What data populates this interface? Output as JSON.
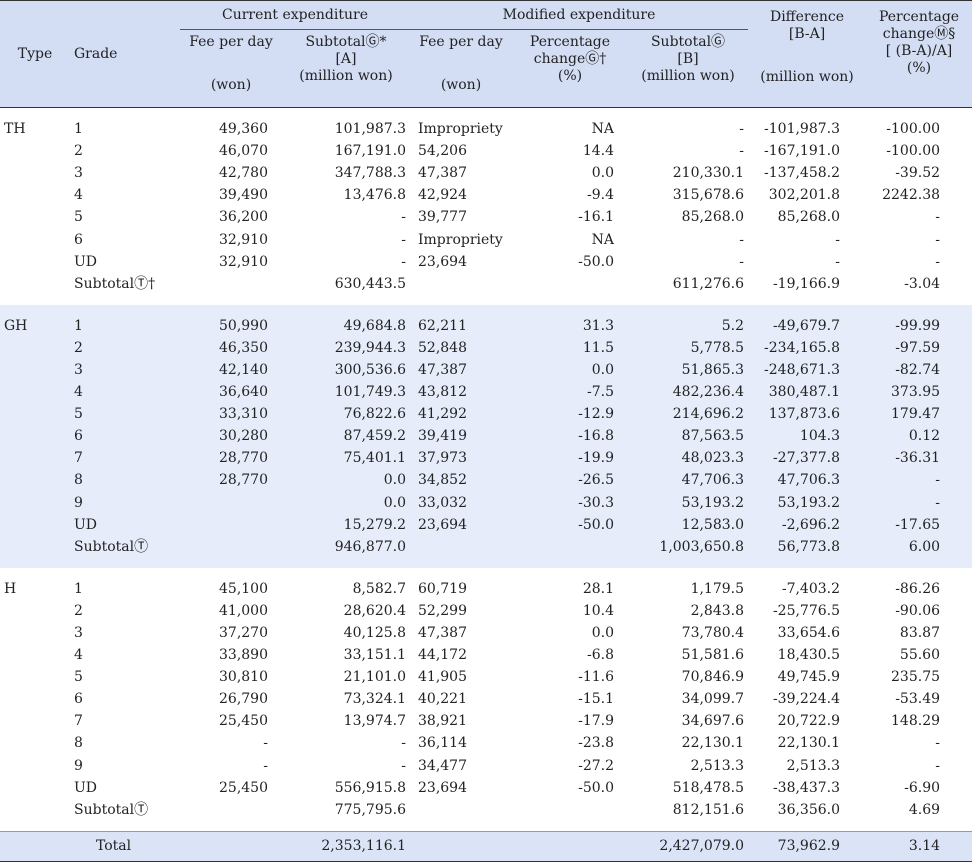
{
  "header": {
    "type": "Type",
    "grade": "Grade",
    "current_group": "Current expenditure",
    "modified_group": "Modified expenditure",
    "cur_fee": "Fee per day",
    "cur_fee_unit": "(won)",
    "cur_sub": "SubtotalⒼ*",
    "cur_sub_a": "[A]",
    "cur_sub_unit": "(million won)",
    "mod_fee": "Fee per day",
    "mod_fee_unit": "(won)",
    "mod_pct": "Percentage",
    "mod_pct2": "changeⒼ†",
    "mod_pct_unit": "(%)",
    "mod_sub": "SubtotalⒼ",
    "mod_sub_b": "[B]",
    "mod_sub_unit": "(million won)",
    "diff": "Difference",
    "diff_ba": "[B-A]",
    "diff_unit": "(million won)",
    "pct": "Percentage",
    "pct2": "changeⓂ§",
    "pct3": "[ (B-A)/A]",
    "pct_unit": "(%)"
  },
  "sections": [
    {
      "type": "TH",
      "rows": [
        [
          "1",
          "49,360",
          "101,987.3",
          "Impropriety",
          "NA",
          "-",
          "-101,987.3",
          "-100.00"
        ],
        [
          "2",
          "46,070",
          "167,191.0",
          "54,206",
          "14.4",
          "-",
          "-167,191.0",
          "-100.00"
        ],
        [
          "3",
          "42,780",
          "347,788.3",
          "47,387",
          "0.0",
          "210,330.1",
          "-137,458.2",
          "-39.52"
        ],
        [
          "4",
          "39,490",
          "13,476.8",
          "42,924",
          "-9.4",
          "315,678.6",
          "302,201.8",
          "2242.38"
        ],
        [
          "5",
          "36,200",
          "-",
          "39,777",
          "-16.1",
          "85,268.0",
          "85,268.0",
          "-"
        ],
        [
          "6",
          "32,910",
          "-",
          "Impropriety",
          "NA",
          "-",
          "-",
          "-"
        ],
        [
          "UD",
          "32,910",
          "-",
          "23,694",
          "-50.0",
          "-",
          "-",
          "-"
        ],
        [
          "SubtotalⓉ†",
          "",
          "630,443.5",
          "",
          "",
          "611,276.6",
          "-19,166.9",
          "-3.04"
        ]
      ]
    },
    {
      "type": "GH",
      "rows": [
        [
          "1",
          "50,990",
          "49,684.8",
          "62,211",
          "31.3",
          "5.2",
          "-49,679.7",
          "-99.99"
        ],
        [
          "2",
          "46,350",
          "239,944.3",
          "52,848",
          "11.5",
          "5,778.5",
          "-234,165.8",
          "-97.59"
        ],
        [
          "3",
          "42,140",
          "300,536.6",
          "47,387",
          "0.0",
          "51,865.3",
          "-248,671.3",
          "-82.74"
        ],
        [
          "4",
          "36,640",
          "101,749.3",
          "43,812",
          "-7.5",
          "482,236.4",
          "380,487.1",
          "373.95"
        ],
        [
          "5",
          "33,310",
          "76,822.6",
          "41,292",
          "-12.9",
          "214,696.2",
          "137,873.6",
          "179.47"
        ],
        [
          "6",
          "30,280",
          "87,459.2",
          "39,419",
          "-16.8",
          "87,563.5",
          "104.3",
          "0.12"
        ],
        [
          "7",
          "28,770",
          "75,401.1",
          "37,973",
          "-19.9",
          "48,023.3",
          "-27,377.8",
          "-36.31"
        ],
        [
          "8",
          "28,770",
          "0.0",
          "34,852",
          "-26.5",
          "47,706.3",
          "47,706.3",
          "-"
        ],
        [
          "9",
          "",
          "0.0",
          "33,032",
          "-30.3",
          "53,193.2",
          "53,193.2",
          "-"
        ],
        [
          "UD",
          "",
          "15,279.2",
          "23,694",
          "-50.0",
          "12,583.0",
          "-2,696.2",
          "-17.65"
        ],
        [
          "SubtotalⓉ",
          "",
          "946,877.0",
          "",
          "",
          "1,003,650.8",
          "56,773.8",
          "6.00"
        ]
      ]
    },
    {
      "type": "H",
      "rows": [
        [
          "1",
          "45,100",
          "8,582.7",
          "60,719",
          "28.1",
          "1,179.5",
          "-7,403.2",
          "-86.26"
        ],
        [
          "2",
          "41,000",
          "28,620.4",
          "52,299",
          "10.4",
          "2,843.8",
          "-25,776.5",
          "-90.06"
        ],
        [
          "3",
          "37,270",
          "40,125.8",
          "47,387",
          "0.0",
          "73,780.4",
          "33,654.6",
          "83.87"
        ],
        [
          "4",
          "33,890",
          "33,151.1",
          "44,172",
          "-6.8",
          "51,581.6",
          "18,430.5",
          "55.60"
        ],
        [
          "5",
          "30,810",
          "21,101.0",
          "41,905",
          "-11.6",
          "70,846.9",
          "49,745.9",
          "235.75"
        ],
        [
          "6",
          "26,790",
          "73,324.1",
          "40,221",
          "-15.1",
          "34,099.7",
          "-39,224.4",
          "-53.49"
        ],
        [
          "7",
          "25,450",
          "13,974.7",
          "38,921",
          "-17.9",
          "34,697.6",
          "20,722.9",
          "148.29"
        ],
        [
          "8",
          "-",
          "-",
          "36,114",
          "-23.8",
          "22,130.1",
          "22,130.1",
          "-"
        ],
        [
          "9",
          "-",
          "-",
          "34,477",
          "-27.2",
          "2,513.3",
          "2,513.3",
          "-"
        ],
        [
          "UD",
          "25,450",
          "556,915.8",
          "23,694",
          "-50.0",
          "518,478.5",
          "-38,437.3",
          "-6.90"
        ],
        [
          "SubtotalⓉ",
          "",
          "775,795.6",
          "",
          "",
          "812,151.6",
          "36,356.0",
          "4.69"
        ]
      ]
    }
  ],
  "total": {
    "label": "Total",
    "cur_sub": "2,353,116.1",
    "mod_sub": "2,427,079.0",
    "diff": "73,962.9",
    "pct": "3.14"
  }
}
